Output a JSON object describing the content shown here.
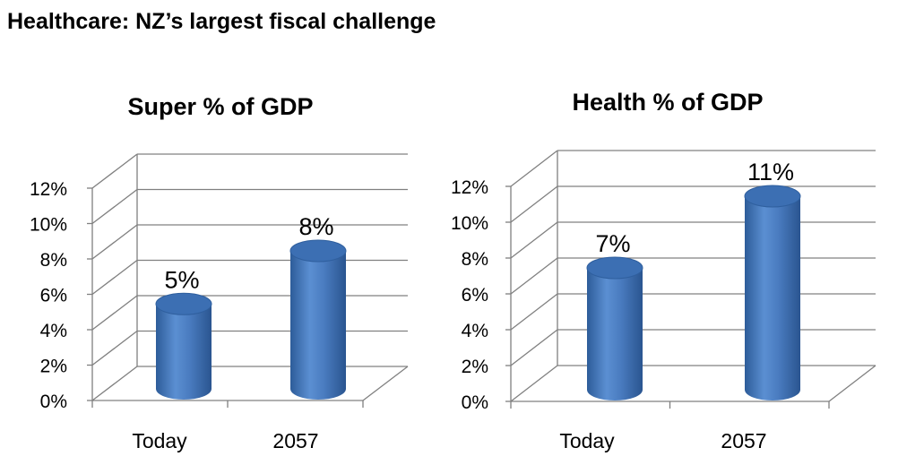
{
  "page": {
    "title": "Healthcare: NZ’s largest fiscal challenge"
  },
  "colors": {
    "bar_body": "#4a7cc0",
    "bar_top": "#3c6fb3",
    "grid": "#808080"
  },
  "chart_data": [
    {
      "type": "bar",
      "title": "Super % of GDP",
      "categories": [
        "Today",
        "2057"
      ],
      "values": [
        5,
        8
      ],
      "data_labels": [
        "5%",
        "8%"
      ],
      "ytick_labels": [
        "0%",
        "2%",
        "4%",
        "6%",
        "8%",
        "10%",
        "12%"
      ],
      "ylim": [
        0,
        12
      ],
      "grid": true,
      "style": "3d-cylinder"
    },
    {
      "type": "bar",
      "title": "Health % of GDP",
      "categories": [
        "Today",
        "2057"
      ],
      "values": [
        7,
        11
      ],
      "data_labels": [
        "7%",
        "11%"
      ],
      "ytick_labels": [
        "0%",
        "2%",
        "4%",
        "6%",
        "8%",
        "10%",
        "12%"
      ],
      "ylim": [
        0,
        12
      ],
      "grid": true,
      "style": "3d-cylinder"
    }
  ]
}
